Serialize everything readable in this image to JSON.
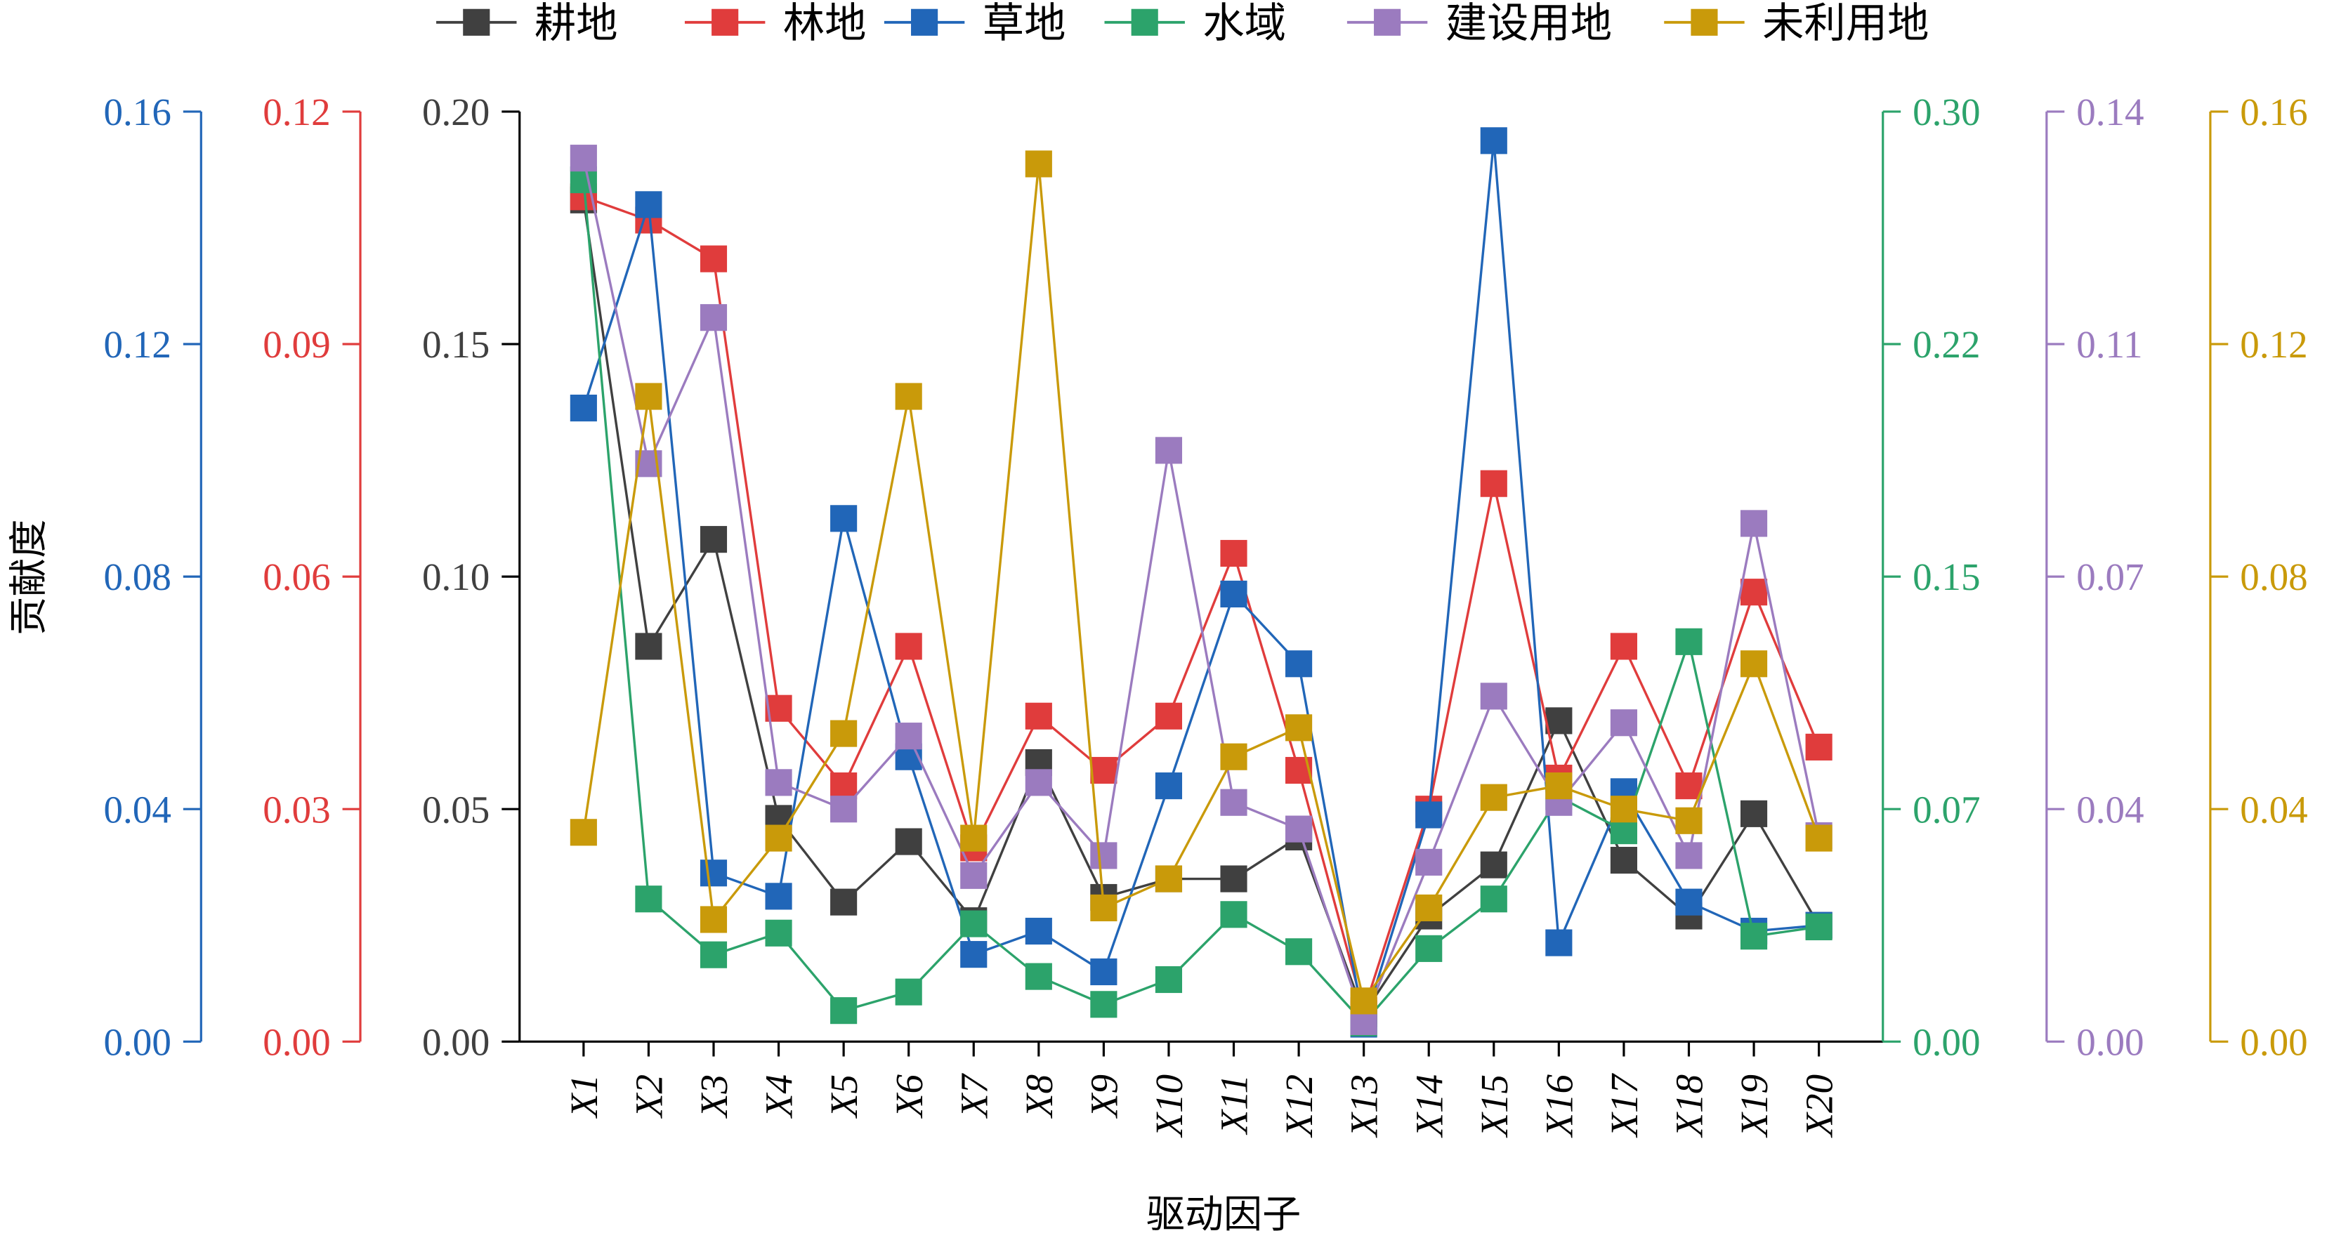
{
  "chart_data": {
    "type": "line",
    "title": "",
    "xlabel": "驱动因子",
    "ylabel": "贡献度",
    "categories": [
      "X1",
      "X2",
      "X3",
      "X4",
      "X5",
      "X6",
      "X7",
      "X8",
      "X9",
      "X10",
      "X11",
      "X12",
      "X13",
      "X14",
      "X15",
      "X16",
      "X17",
      "X18",
      "X19",
      "X20"
    ],
    "legend_position": "top",
    "grid": false,
    "series": [
      {
        "name": "耕地",
        "color": "#404040",
        "axis": "left-inner",
        "ylim": [
          0,
          0.2
        ],
        "ticks": [
          "0.00",
          "0.05",
          "0.10",
          "0.15",
          "0.20"
        ],
        "values": [
          0.181,
          0.085,
          0.108,
          0.048,
          0.03,
          0.043,
          0.026,
          0.06,
          0.031,
          0.035,
          0.035,
          0.044,
          0.006,
          0.027,
          0.038,
          0.069,
          0.039,
          0.027,
          0.049,
          0.025
        ]
      },
      {
        "name": "林地",
        "color": "#e03c3c",
        "axis": "left-middle",
        "ylim": [
          0,
          0.12
        ],
        "ticks": [
          "0.00",
          "0.03",
          "0.06",
          "0.09",
          "0.12"
        ],
        "values": [
          0.109,
          0.106,
          0.101,
          0.043,
          0.033,
          0.051,
          0.025,
          0.042,
          0.035,
          0.042,
          0.063,
          0.035,
          0.004,
          0.03,
          0.072,
          0.034,
          0.051,
          0.033,
          0.058,
          0.038
        ]
      },
      {
        "name": "草地",
        "color": "#2166b8",
        "axis": "left-outer",
        "ylim": [
          0,
          0.16
        ],
        "ticks": [
          "0.00",
          "0.04",
          "0.08",
          "0.12",
          "0.16"
        ],
        "values": [
          0.109,
          0.144,
          0.029,
          0.025,
          0.09,
          0.049,
          0.015,
          0.019,
          0.012,
          0.044,
          0.077,
          0.065,
          0.003,
          0.039,
          0.155,
          0.017,
          0.043,
          0.024,
          0.019,
          0.02
        ]
      },
      {
        "name": "水域",
        "color": "#2ca36b",
        "axis": "right-inner",
        "ylim": [
          0,
          0.3
        ],
        "ticks": [
          "0.00",
          "0.07",
          "0.15",
          "0.22",
          "0.30"
        ],
        "values": [
          0.278,
          0.046,
          0.028,
          0.035,
          0.01,
          0.016,
          0.038,
          0.021,
          0.012,
          0.02,
          0.041,
          0.029,
          0.006,
          0.03,
          0.046,
          0.079,
          0.068,
          0.129,
          0.034,
          0.037
        ]
      },
      {
        "name": "建设用地",
        "color": "#9b7bbf",
        "axis": "right-middle",
        "ylim": [
          0,
          0.14
        ],
        "ticks": [
          "0.00",
          "0.04",
          "0.07",
          "0.11",
          "0.14"
        ],
        "values": [
          0.133,
          0.087,
          0.109,
          0.039,
          0.035,
          0.046,
          0.025,
          0.039,
          0.028,
          0.089,
          0.036,
          0.032,
          0.003,
          0.027,
          0.052,
          0.036,
          0.048,
          0.028,
          0.078,
          0.031
        ]
      },
      {
        "name": "未利用地",
        "color": "#c99a0a",
        "axis": "right-outer",
        "ylim": [
          0,
          0.16
        ],
        "ticks": [
          "0.00",
          "0.04",
          "0.08",
          "0.12",
          "0.16"
        ],
        "values": [
          0.036,
          0.111,
          0.021,
          0.035,
          0.053,
          0.111,
          0.035,
          0.151,
          0.023,
          0.028,
          0.049,
          0.054,
          0.007,
          0.023,
          0.042,
          0.044,
          0.04,
          0.038,
          0.065,
          0.035
        ]
      }
    ]
  }
}
